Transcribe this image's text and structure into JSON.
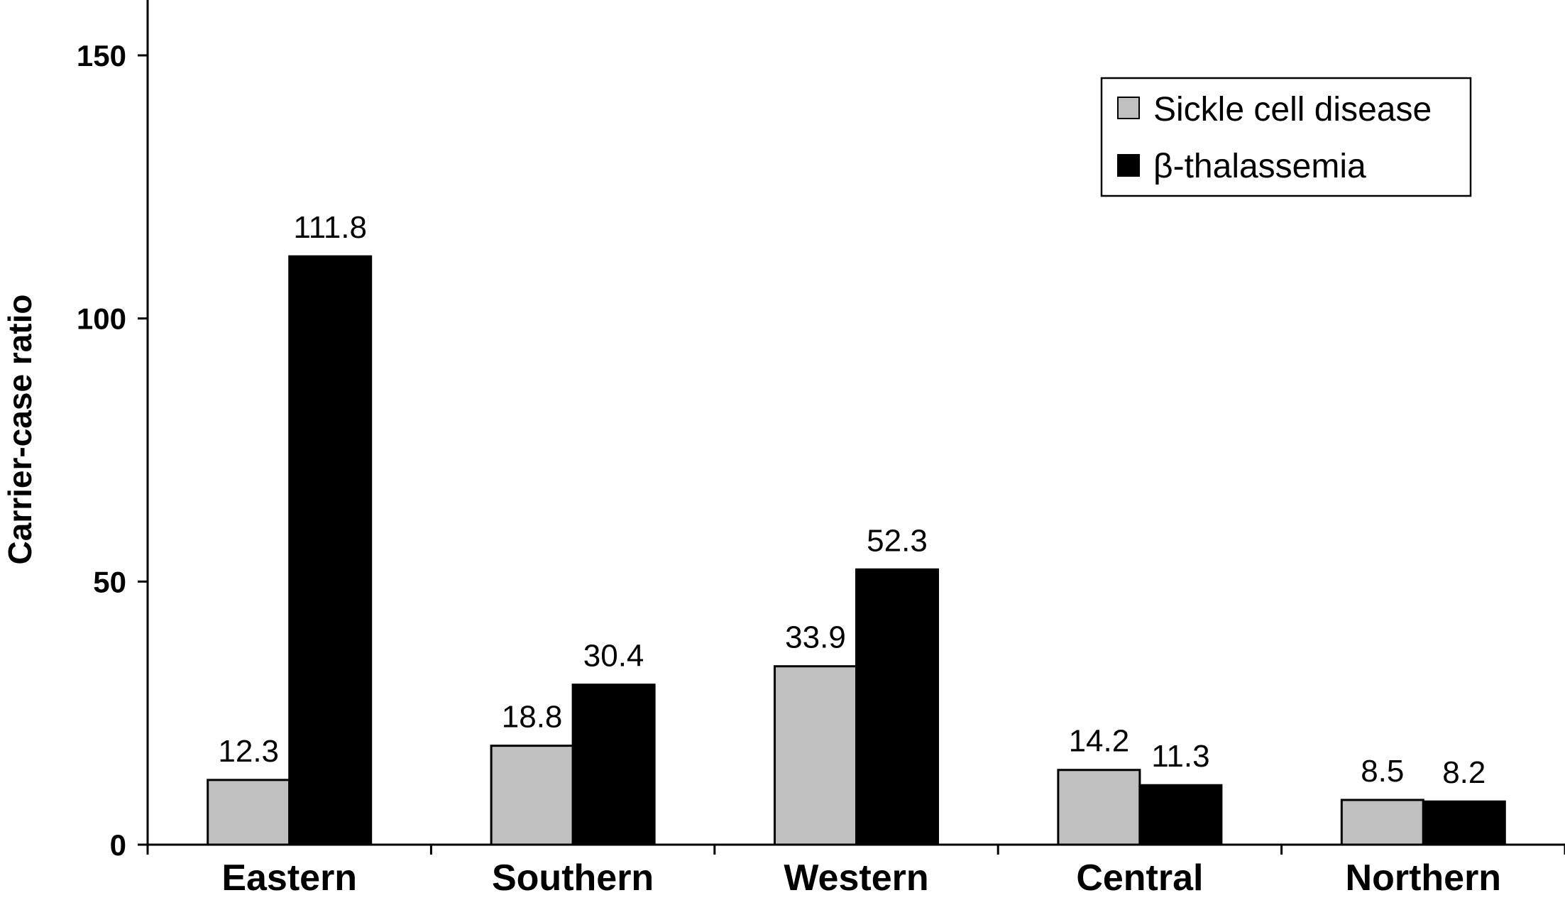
{
  "chart_data": {
    "type": "bar",
    "ylabel": "Carrier-case ratio",
    "xlabel": "",
    "ylim": [
      0,
      150
    ],
    "yticks": [
      0,
      50,
      100,
      150
    ],
    "grid": false,
    "legend_position": "top-right",
    "categories": [
      "Eastern",
      "Southern",
      "Western",
      "Central",
      "Northern"
    ],
    "series": [
      {
        "name": "Sickle cell disease",
        "color": "#c0c0c0",
        "values": [
          12.3,
          18.8,
          33.9,
          14.2,
          8.5
        ],
        "labels": [
          "12.3",
          "18.8",
          "33.9",
          "14.2",
          "8.5"
        ]
      },
      {
        "name": "β-thalassemia",
        "color": "#000000",
        "values": [
          111.8,
          30.4,
          52.3,
          11.3,
          8.2
        ],
        "labels": [
          "111.8",
          "30.4",
          "52.3",
          "11.3",
          "8.2"
        ]
      }
    ]
  }
}
